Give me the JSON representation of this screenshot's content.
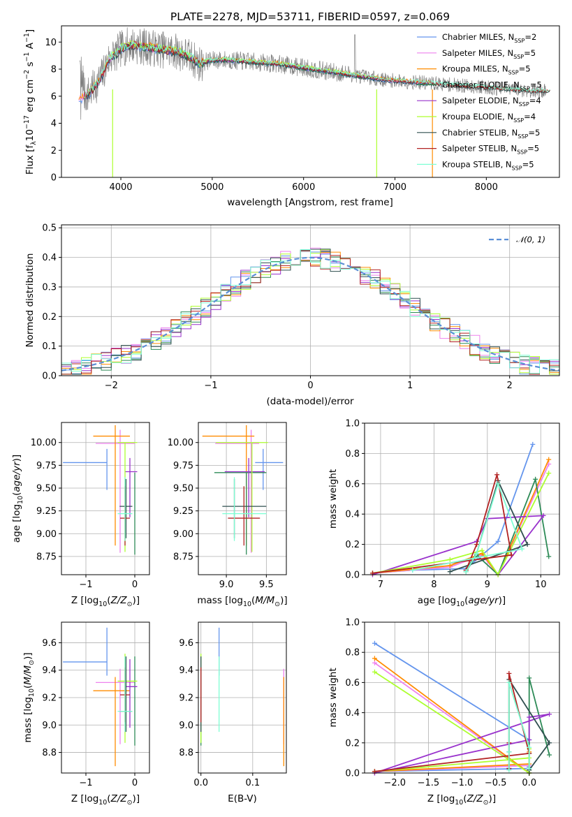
{
  "figure": {
    "title": "PLATE=2278, MJD=53711, FIBERID=0597, z=0.069"
  },
  "chart_data": [
    {
      "id": "spectrum",
      "type": "line",
      "title": "PLATE=2278, MJD=53711, FIBERID=0597, z=0.069",
      "xlabel": "wavelength [Angstrom, rest frame]",
      "ylabel": "Flux [f_λ10^-17 erg cm^-2 s^-1 A^-1]",
      "xlim": [
        3350,
        8800
      ],
      "ylim": [
        0,
        11.2
      ],
      "xticks": [
        4000,
        5000,
        6000,
        7000,
        8000
      ],
      "yticks": [
        0,
        2,
        4,
        6,
        8,
        10
      ],
      "grid": false,
      "legend_position": "top-right",
      "data_series": {
        "name": "data",
        "color": "#808080"
      },
      "continuum": [
        [
          3560,
          5.8
        ],
        [
          3600,
          6.0
        ],
        [
          3650,
          6.2
        ],
        [
          3700,
          6.6
        ],
        [
          3750,
          7.0
        ],
        [
          3800,
          7.6
        ],
        [
          3860,
          8.6
        ],
        [
          3900,
          9.0
        ],
        [
          3950,
          9.1
        ],
        [
          4000,
          9.5
        ],
        [
          4100,
          9.8
        ],
        [
          4200,
          9.7
        ],
        [
          4300,
          9.6
        ],
        [
          4400,
          9.5
        ],
        [
          4500,
          9.4
        ],
        [
          4600,
          9.3
        ],
        [
          4700,
          9.1
        ],
        [
          4800,
          8.7
        ],
        [
          4860,
          8.4
        ],
        [
          4950,
          8.6
        ],
        [
          5100,
          8.7
        ],
        [
          5300,
          8.6
        ],
        [
          5500,
          8.5
        ],
        [
          5700,
          8.4
        ],
        [
          5900,
          8.2
        ],
        [
          6100,
          8.0
        ],
        [
          6300,
          7.8
        ],
        [
          6500,
          7.6
        ],
        [
          6700,
          7.4
        ],
        [
          6900,
          7.2
        ],
        [
          7100,
          7.1
        ],
        [
          7300,
          7.0
        ],
        [
          7500,
          6.9
        ],
        [
          7700,
          6.8
        ],
        [
          7900,
          6.7
        ],
        [
          8100,
          6.6
        ],
        [
          8300,
          6.5
        ],
        [
          8500,
          6.4
        ],
        [
          8600,
          6.4
        ]
      ],
      "models": [
        {
          "name": "Chabrier MILES, N_SSP=2",
          "label": "Chabrier MILES, N",
          "sub": "SSP",
          "eq": "=2",
          "color": "#6495ED",
          "x_range": [
            3540,
            7400
          ]
        },
        {
          "name": "Salpeter MILES, N_SSP=5",
          "label": "Salpeter MILES, N",
          "sub": "SSP",
          "eq": "=5",
          "color": "#EE82EE",
          "x_range": [
            3540,
            7400
          ]
        },
        {
          "name": "Kroupa MILES, N_SSP=5",
          "label": "Kroupa MILES, N",
          "sub": "SSP",
          "eq": "=5",
          "color": "#FF8C00",
          "x_range": [
            3540,
            7400
          ]
        },
        {
          "name": "Chabrier ELODIE, N_SSP=5",
          "label": "Chabrier ELODIE, N",
          "sub": "SSP",
          "eq": "=5",
          "color": "#2E8B57",
          "x_range": [
            3900,
            6800
          ]
        },
        {
          "name": "Salpeter ELODIE, N_SSP=4",
          "label": "Salpeter ELODIE, N",
          "sub": "SSP",
          "eq": "=4",
          "color": "#9932CC",
          "x_range": [
            3900,
            6800
          ]
        },
        {
          "name": "Kroupa ELODIE, N_SSP=4",
          "label": "Kroupa ELODIE, N",
          "sub": "SSP",
          "eq": "=4",
          "color": "#ADFF2F",
          "x_range": [
            3900,
            6800
          ]
        },
        {
          "name": "Chabrier STELIB, N_SSP=5",
          "label": "Chabrier STELIB, N",
          "sub": "SSP",
          "eq": "=5",
          "color": "#2F4F4F",
          "x_range": [
            3600,
            8700
          ]
        },
        {
          "name": "Salpeter STELIB, N_SSP=5",
          "label": "Salpeter STELIB, N",
          "sub": "SSP",
          "eq": "=5",
          "color": "#B22222",
          "x_range": [
            3600,
            8700
          ]
        },
        {
          "name": "Kroupa STELIB, N_SSP=5",
          "label": "Kroupa STELIB, N",
          "sub": "SSP",
          "eq": "=5",
          "color": "#7FFFD4",
          "x_range": [
            3600,
            8700
          ]
        }
      ]
    },
    {
      "id": "residuals",
      "type": "line",
      "xlabel": "(data-model)/error",
      "ylabel": "Normed distribution",
      "xlim": [
        -2.5,
        2.5
      ],
      "ylim": [
        0,
        0.51
      ],
      "xticks": [
        -2,
        -1,
        0,
        1,
        2
      ],
      "yticks": [
        0.0,
        0.1,
        0.2,
        0.3,
        0.4,
        0.5
      ],
      "grid": true,
      "legend_position": "top-right",
      "reference_curve": {
        "name": "N(0,1)",
        "legend": "𝒩(0, 1)",
        "color": "#5B8FD6"
      },
      "bin_width": 0.1
    },
    {
      "id": "age_vs_Z",
      "type": "scatter",
      "xlabel": "Z [log10(Z/Z⊙)]",
      "ylabel": "age [log10(age/yr)]",
      "xlim": [
        -1.5,
        0.3
      ],
      "ylim": [
        8.55,
        10.22
      ],
      "xticks": [
        -1,
        0
      ],
      "yticks": [
        8.75,
        9.0,
        9.25,
        9.5,
        9.75,
        10.0
      ],
      "grid": true
    },
    {
      "id": "age_vs_mass",
      "type": "scatter",
      "xlabel": "mass [log10(M/M⊙)]",
      "xlim": [
        8.65,
        9.75
      ],
      "ylim": [
        8.55,
        10.22
      ],
      "xticks": [
        9.0,
        9.5
      ],
      "yticks": [
        8.75,
        9.0,
        9.25,
        9.5,
        9.75,
        10.0
      ],
      "grid": true
    },
    {
      "id": "weight_vs_age",
      "type": "line",
      "xlabel": "age [log10(age/yr)]",
      "ylabel": "mass weight",
      "xlim": [
        6.7,
        10.35
      ],
      "ylim": [
        0,
        1.0
      ],
      "xticks": [
        7,
        8,
        9,
        10
      ],
      "yticks": [
        0.0,
        0.2,
        0.4,
        0.6,
        0.8,
        1.0
      ],
      "grid": true
    },
    {
      "id": "mass_vs_Z",
      "type": "scatter",
      "xlabel": "Z [log10(Z/Z⊙)]",
      "ylabel": "mass [log10(M/M⊙)]",
      "xlim": [
        -1.5,
        0.3
      ],
      "ylim": [
        8.65,
        9.75
      ],
      "xticks": [
        -1,
        0
      ],
      "yticks": [
        8.8,
        9.0,
        9.2,
        9.4,
        9.6
      ],
      "grid": true
    },
    {
      "id": "mass_vs_ebv",
      "type": "scatter",
      "xlabel": "E(B-V)",
      "xlim": [
        -0.005,
        0.165
      ],
      "ylim": [
        8.65,
        9.75
      ],
      "xticks": [
        0.0,
        0.1
      ],
      "yticks": [
        8.8,
        9.0,
        9.2,
        9.4,
        9.6
      ],
      "grid": true
    },
    {
      "id": "weight_vs_Z",
      "type": "line",
      "xlabel": "Z [log10(Z/Z⊙)]",
      "ylabel": "mass weight",
      "xlim": [
        -2.45,
        0.45
      ],
      "ylim": [
        0,
        1.0
      ],
      "xticks": [
        -2.0,
        -1.5,
        -1.0,
        -0.5,
        0.0
      ],
      "yticks": [
        0.0,
        0.2,
        0.4,
        0.6,
        0.8,
        1.0
      ],
      "grid": true
    }
  ],
  "fits": [
    {
      "name": "Chabrier MILES",
      "color": "#6495ED",
      "Z": -0.57,
      "Z_err": [
        0.9,
        0.0
      ],
      "age": 9.78,
      "age_err": [
        0.3,
        0.15
      ],
      "mass": 9.46,
      "mass_err": [
        0.1,
        0.25
      ],
      "ebv": 0.035,
      "ebv_err": [
        0.0,
        0.0
      ],
      "components": [
        [
          6.85,
          -2.3,
          0.01
        ],
        [
          7.6,
          0.0,
          0.03
        ],
        [
          8.6,
          0.0,
          0.04
        ],
        [
          9.2,
          0.0,
          0.22
        ],
        [
          9.85,
          -2.3,
          0.86
        ]
      ]
    },
    {
      "name": "Salpeter MILES",
      "color": "#EE82EE",
      "Z": -0.3,
      "Z_err": [
        0.5,
        0.3
      ],
      "age": 9.99,
      "age_err": [
        1.2,
        0.15
      ],
      "mass": 9.31,
      "mass_err": [
        0.45,
        0.1
      ],
      "ebv": 0.16,
      "ebv_err": [
        0.0,
        0.0
      ],
      "components": [
        [
          6.85,
          -2.3,
          0.01
        ],
        [
          8.3,
          0.0,
          0.05
        ],
        [
          8.9,
          0.0,
          0.13
        ],
        [
          9.2,
          0.0,
          0.0
        ],
        [
          10.15,
          -2.3,
          0.73
        ]
      ]
    },
    {
      "name": "Kroupa MILES",
      "color": "#FF8C00",
      "Z": -0.4,
      "Z_err": [
        0.45,
        0.3
      ],
      "age": 10.07,
      "age_err": [
        1.2,
        0.12
      ],
      "mass": 9.25,
      "mass_err": [
        0.55,
        0.1
      ],
      "ebv": 0.16,
      "ebv_err": [
        0.0,
        0.0
      ],
      "components": [
        [
          6.85,
          -2.3,
          0.01
        ],
        [
          8.3,
          0.0,
          0.06
        ],
        [
          8.9,
          0.0,
          0.14
        ],
        [
          9.2,
          0.0,
          0.0
        ],
        [
          10.15,
          -2.3,
          0.76
        ]
      ]
    },
    {
      "name": "Chabrier ELODIE",
      "color": "#2E8B57",
      "Z": 0.0,
      "Z_err": [
        0.0,
        0.0
      ],
      "age": 9.67,
      "age_err": [
        0.9,
        0.0
      ],
      "mass": 9.25,
      "mass_err": [
        0.4,
        0.25
      ],
      "ebv": 0.0,
      "ebv_err": [
        0.0,
        0.0
      ],
      "components": [
        [
          8.6,
          0.0,
          0.02
        ],
        [
          8.8,
          0.0,
          0.13
        ],
        [
          9.2,
          0.0,
          0.0
        ],
        [
          9.9,
          0.0,
          0.63
        ],
        [
          10.15,
          0.3,
          0.12
        ]
      ]
    },
    {
      "name": "Salpeter ELODIE",
      "color": "#9932CC",
      "Z": -0.1,
      "Z_err": [
        0.1,
        0.15
      ],
      "age": 9.68,
      "age_err": [
        0.5,
        0.15
      ],
      "mass": 9.28,
      "mass_err": [
        0.3,
        0.2
      ],
      "ebv": 0.0,
      "ebv_err": [
        0.0,
        0.0
      ],
      "components": [
        [
          6.85,
          -2.3,
          0.0
        ],
        [
          8.8,
          0.0,
          0.22
        ],
        [
          9.0,
          0.0,
          0.37
        ],
        [
          10.05,
          0.3,
          0.39
        ],
        [
          9.2,
          -2.3,
          0.0
        ]
      ]
    },
    {
      "name": "Kroupa ELODIE",
      "color": "#ADFF2F",
      "Z": -0.2,
      "Z_err": [
        0.15,
        0.25
      ],
      "age": 10.0,
      "age_err": [
        1.2,
        0.0
      ],
      "mass": 9.32,
      "mass_err": [
        0.45,
        0.2
      ],
      "ebv": 0.0,
      "ebv_err": [
        0.0,
        0.0
      ],
      "components": [
        [
          6.85,
          -2.3,
          0.01
        ],
        [
          8.3,
          0.0,
          0.1
        ],
        [
          8.9,
          0.0,
          0.16
        ],
        [
          9.2,
          0.0,
          0.0
        ],
        [
          10.15,
          -2.3,
          0.67
        ]
      ]
    },
    {
      "name": "Chabrier STELIB",
      "color": "#2F4F4F",
      "Z": -0.18,
      "Z_err": [
        0.13,
        0.13
      ],
      "age": 9.3,
      "age_err": [
        0.35,
        0.3
      ],
      "mass": 9.1,
      "mass_err": [
        0.15,
        0.4
      ],
      "ebv": 0.0,
      "ebv_err": [
        0.0,
        0.0
      ],
      "components": [
        [
          8.6,
          -0.3,
          0.03
        ],
        [
          8.8,
          -0.3,
          0.14
        ],
        [
          9.2,
          -0.3,
          0.62
        ],
        [
          9.75,
          0.3,
          0.2
        ],
        [
          8.3,
          0.0,
          0.02
        ]
      ]
    },
    {
      "name": "Salpeter STELIB",
      "color": "#B22222",
      "Z": -0.2,
      "Z_err": [
        0.1,
        0.1
      ],
      "age": 9.17,
      "age_err": [
        0.3,
        0.35
      ],
      "mass": 9.22,
      "mass_err": [
        0.2,
        0.2
      ],
      "ebv": 0.0,
      "ebv_err": [
        0.0,
        0.0
      ],
      "components": [
        [
          8.6,
          -0.3,
          0.03
        ],
        [
          8.8,
          -0.3,
          0.2
        ],
        [
          9.18,
          -0.3,
          0.66
        ],
        [
          9.45,
          0.0,
          0.13
        ],
        [
          6.85,
          -2.3,
          0.01
        ]
      ]
    },
    {
      "name": "Kroupa STELIB",
      "color": "#7FFFD4",
      "Z": -0.2,
      "Z_err": [
        0.15,
        0.15
      ],
      "age": 9.22,
      "age_err": [
        0.3,
        0.4
      ],
      "mass": 9.1,
      "mass_err": [
        0.15,
        0.4
      ],
      "ebv": 0.035,
      "ebv_err": [
        0.0,
        0.0
      ],
      "components": [
        [
          8.6,
          -0.3,
          0.02
        ],
        [
          8.8,
          -0.3,
          0.14
        ],
        [
          9.2,
          -0.3,
          0.6
        ],
        [
          9.65,
          0.0,
          0.17
        ],
        [
          7.6,
          0.0,
          0.03
        ]
      ]
    }
  ]
}
